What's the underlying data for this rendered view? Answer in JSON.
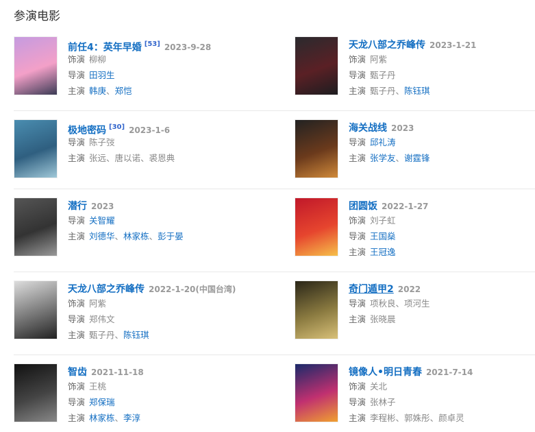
{
  "section_title": "参演电影",
  "colors": {
    "link": "#136ec2",
    "muted": "#999999"
  },
  "labels": {
    "role": "饰演",
    "director": "导演",
    "cast": "主演"
  },
  "movies": [
    {
      "title": "前任4：英年早婚",
      "ref": "[53]",
      "date": "2023-9-28",
      "role": "柳柳",
      "director": [
        {
          "n": "田羽生",
          "link": true
        }
      ],
      "cast": [
        {
          "n": "韩庚",
          "link": true
        },
        {
          "n": "郑恺",
          "link": true
        }
      ],
      "poster": [
        "#c59be0",
        "#f3a0c8",
        "#3b3b55"
      ]
    },
    {
      "title": "天龙八部之乔峰传",
      "date": "2023-1-21",
      "role": "阿紫",
      "director": [
        {
          "n": "甄子丹",
          "link": false
        }
      ],
      "cast": [
        {
          "n": "甄子丹",
          "link": false
        },
        {
          "n": "陈钰琪",
          "link": true
        }
      ],
      "poster": [
        "#2a2a2e",
        "#5a2025",
        "#1d1d20"
      ]
    },
    {
      "title": "极地密码",
      "ref": "[30]",
      "date": "2023-1-6",
      "director": [
        {
          "n": "陈子弢",
          "link": false
        }
      ],
      "cast": [
        {
          "n": "张远",
          "link": false
        },
        {
          "n": "唐以诺",
          "link": false
        },
        {
          "n": "裘恩典",
          "link": false
        }
      ],
      "poster": [
        "#4a8db0",
        "#2f5f80",
        "#a0c8d8"
      ]
    },
    {
      "title": "海关战线",
      "date": "2023",
      "director": [
        {
          "n": "邱礼涛",
          "link": true
        }
      ],
      "cast": [
        {
          "n": "张学友",
          "link": true
        },
        {
          "n": "谢霆锋",
          "link": true
        }
      ],
      "poster": [
        "#222",
        "#6b3a1c",
        "#d08a3a"
      ]
    },
    {
      "title": "潜行",
      "date": "2023",
      "director": [
        {
          "n": "关智耀",
          "link": true
        }
      ],
      "cast": [
        {
          "n": "刘德华",
          "link": true
        },
        {
          "n": "林家栋",
          "link": true
        },
        {
          "n": "彭于晏",
          "link": true
        }
      ],
      "poster": [
        "#555",
        "#333",
        "#999"
      ]
    },
    {
      "title": "团圆饭",
      "date": "2022-1-27",
      "role": "刘子虹",
      "director": [
        {
          "n": "王国燊",
          "link": true
        }
      ],
      "cast": [
        {
          "n": "王冠逸",
          "link": true
        }
      ],
      "poster": [
        "#c0182a",
        "#e6452e",
        "#f6c04a"
      ]
    },
    {
      "title": "天龙八部之乔峰传",
      "date": "2022-1-20(中国台湾)",
      "role": "阿紫",
      "director": [
        {
          "n": "郑伟文",
          "link": false
        }
      ],
      "cast": [
        {
          "n": "甄子丹",
          "link": false
        },
        {
          "n": "陈钰琪",
          "link": true
        }
      ],
      "poster": [
        "#ddd",
        "#777",
        "#222"
      ]
    },
    {
      "title": "奇门遁甲2",
      "date": "2022",
      "hover": true,
      "director": [
        {
          "n": "项秋良",
          "link": false
        },
        {
          "n": "项河生",
          "link": false
        }
      ],
      "cast": [
        {
          "n": "张晓晨",
          "link": false
        }
      ],
      "poster": [
        "#2a2618",
        "#8a7a40",
        "#d8c078"
      ]
    },
    {
      "title": "智齿",
      "date": "2021-11-18",
      "role": "王桃",
      "director": [
        {
          "n": "郑保瑞",
          "link": true
        }
      ],
      "cast": [
        {
          "n": "林家栋",
          "link": true
        },
        {
          "n": "李淳",
          "link": true
        }
      ],
      "poster": [
        "#111",
        "#444",
        "#888"
      ]
    },
    {
      "title": "镜像人•明日青春",
      "date": "2021-7-14",
      "role": "关北",
      "director": [
        {
          "n": "张林子",
          "link": false
        }
      ],
      "cast": [
        {
          "n": "李程彬",
          "link": false
        },
        {
          "n": "郭姝彤",
          "link": false
        },
        {
          "n": "颜卓灵",
          "link": false
        }
      ],
      "poster": [
        "#1a2a6a",
        "#c03070",
        "#f0a030"
      ]
    }
  ]
}
